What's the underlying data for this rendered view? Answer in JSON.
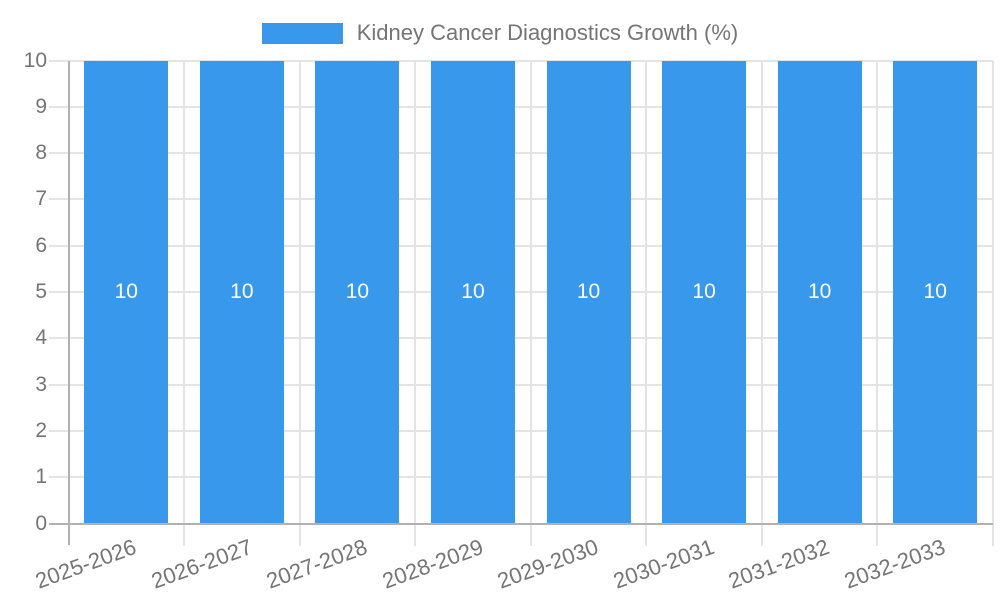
{
  "chart_data": {
    "type": "bar",
    "title": "Kidney Cancer Diagnostics Growth (%)",
    "legend": {
      "position": "top",
      "label": "Kidney Cancer Diagnostics Growth (%)"
    },
    "categories": [
      "2025-2026",
      "2026-2027",
      "2027-2028",
      "2028-2029",
      "2029-2030",
      "2030-2031",
      "2031-2032",
      "2032-2033"
    ],
    "series": [
      {
        "name": "Kidney Cancer Diagnostics Growth (%)",
        "values": [
          10,
          10,
          10,
          10,
          10,
          10,
          10,
          10
        ]
      }
    ],
    "bar_value_labels": [
      "10",
      "10",
      "10",
      "10",
      "10",
      "10",
      "10",
      "10"
    ],
    "xlabel": "",
    "ylabel": "",
    "ylim": [
      0,
      10
    ],
    "y_ticks": [
      0,
      1,
      2,
      3,
      4,
      5,
      6,
      7,
      8,
      9,
      10
    ],
    "grid": true,
    "x_label_rotation_deg": -20,
    "colors": {
      "bar": "#3899ec",
      "axis_text": "#757575",
      "value_label": "#ffffff",
      "gridline": "#e4e4e4",
      "axis_line": "#b1b1b1",
      "background": "#ffffff"
    }
  }
}
